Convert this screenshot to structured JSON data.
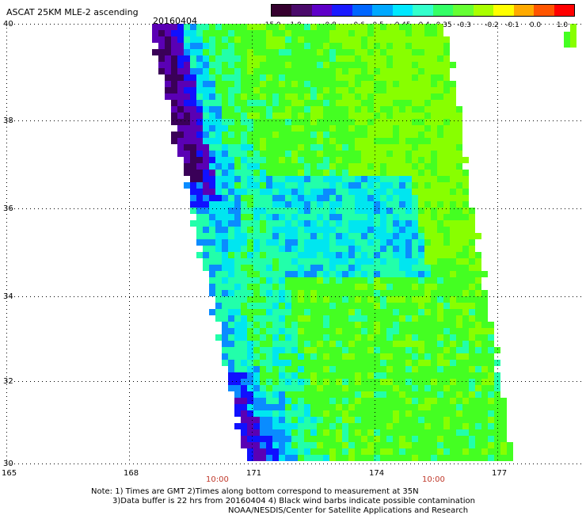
{
  "header": {
    "title": "ASCAT 25KM MLE-2 ascending",
    "date": "20160404"
  },
  "colorbar": {
    "labels": [
      "-15.0",
      "-1.0",
      "-0.8",
      "-0.6",
      "-0.5",
      "-0.45",
      "-0.4",
      "-0.35",
      "-0.3",
      "-0.2",
      "-0.1",
      "0.0",
      "1.0"
    ],
    "colors": [
      "#35002e",
      "#4a0a6a",
      "#5e00c8",
      "#1a1aff",
      "#0066ff",
      "#00a8ff",
      "#00e8ff",
      "#33ffcc",
      "#33ff66",
      "#66ff33",
      "#aaff00",
      "#ffff00",
      "#ffaa00",
      "#ff5500",
      "#ff0000"
    ]
  },
  "map": {
    "lat_labels": [
      "40",
      "38",
      "36",
      "34",
      "32",
      "30"
    ],
    "lon_labels": [
      "165",
      "168",
      "171",
      "174",
      "177"
    ],
    "times": [
      "10:00",
      "10:00"
    ],
    "colors": {
      "dark_purple": "#3a0058",
      "purple": "#5a00b4",
      "blue": "#1010ff",
      "light_blue": "#0a8cff",
      "cyan": "#00e6f0",
      "teal_green": "#22ffaa",
      "green": "#44ff22",
      "yellow_green": "#88ff00",
      "grid": "#000000"
    }
  },
  "footer": {
    "line1": "Note: 1) Times are GMT 2)Times along bottom correspond to measurement at 35N",
    "line2": "3)Data buffer is 22 hrs from 20160404 4) Black wind barbs indicate possible contamination",
    "line3": "NOAA/NESDIS/Center for Satellite Applications and Research"
  }
}
